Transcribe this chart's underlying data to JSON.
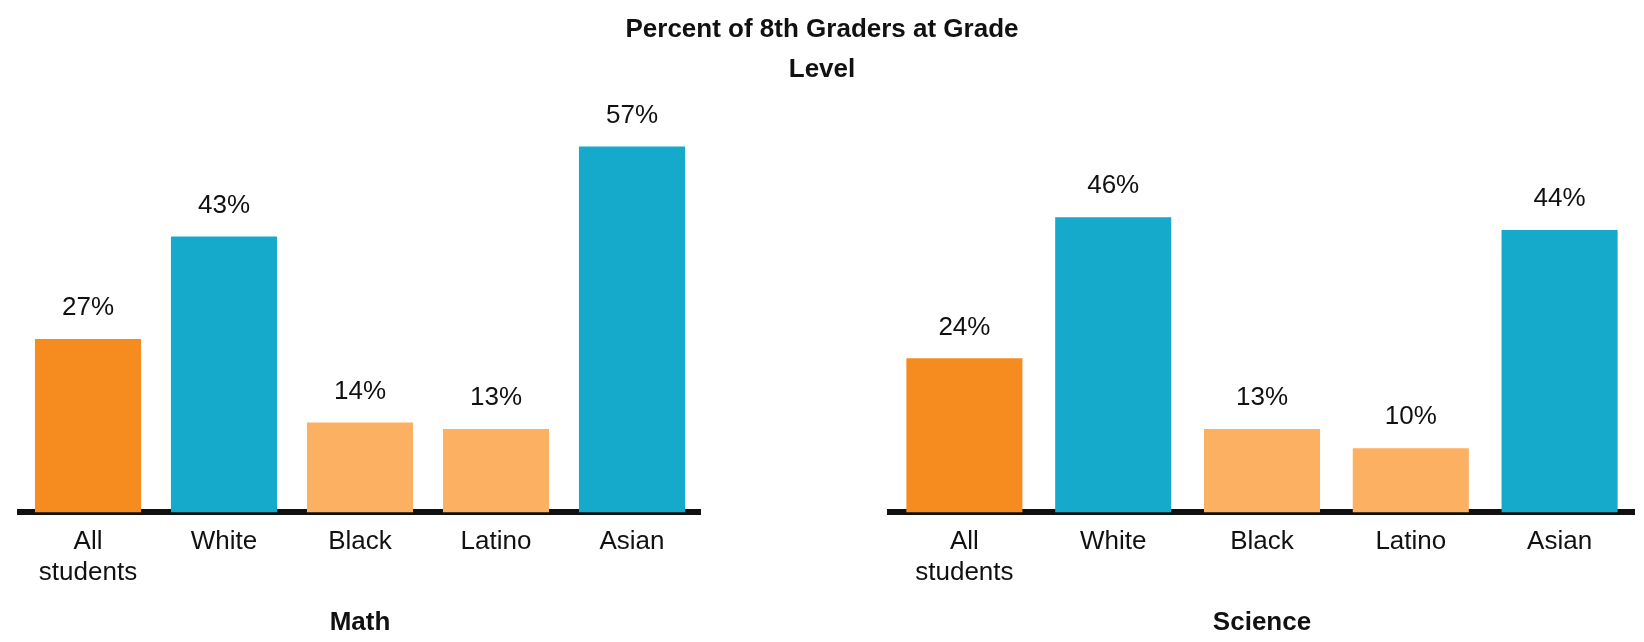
{
  "chart_data": [
    {
      "type": "bar",
      "title": "Percent of 8th Graders at Grade Level",
      "xlabel": "Math",
      "categories": [
        "All students",
        "White",
        "Black",
        "Latino",
        "Asian"
      ],
      "values": [
        27,
        43,
        14,
        13,
        57
      ],
      "colors": [
        "#f68b1f",
        "#15a9cc",
        "#fbb062",
        "#fbb062",
        "#15a9cc"
      ],
      "value_labels": [
        "27%",
        "43%",
        "14%",
        "13%",
        "57%"
      ]
    },
    {
      "type": "bar",
      "xlabel": "Science",
      "categories": [
        "All students",
        "White",
        "Black",
        "Latino",
        "Asian"
      ],
      "values": [
        24,
        46,
        13,
        10,
        44
      ],
      "colors": [
        "#f68b1f",
        "#15a9cc",
        "#fbb062",
        "#fbb062",
        "#15a9cc"
      ],
      "value_labels": [
        "24%",
        "46%",
        "13%",
        "10%",
        "44%"
      ]
    }
  ]
}
